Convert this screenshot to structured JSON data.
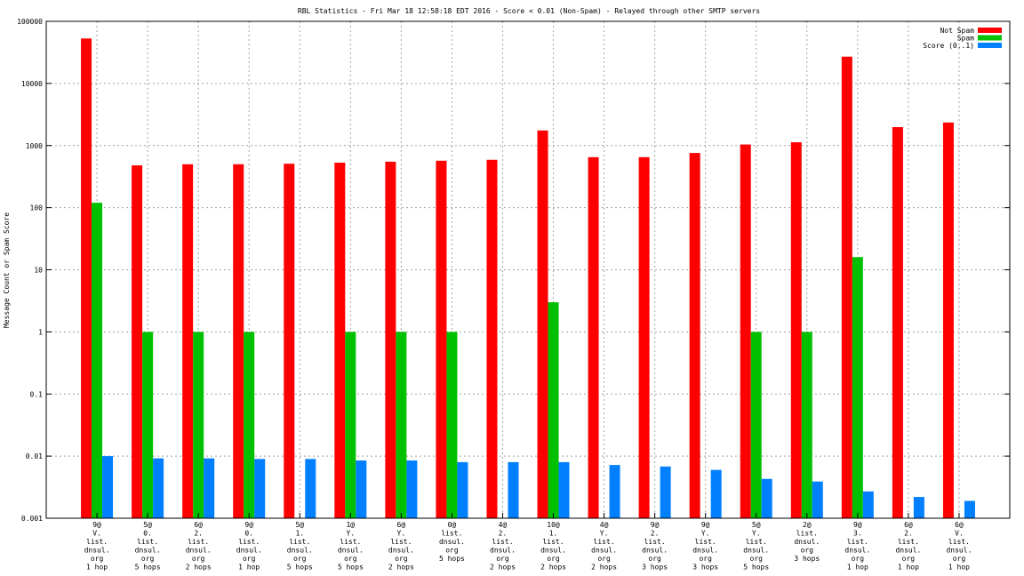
{
  "chart_data": {
    "type": "bar",
    "title": "RBL Statistics - Fri Mar 18 12:58:18 EDT 2016 - Score < 0.01 (Non-Spam) - Relayed through other SMTP servers",
    "xlabel": "",
    "ylabel": "Message Count or Spam Score",
    "yscale": "log",
    "ylim": [
      0.001,
      100000
    ],
    "yticks": [
      "0.001",
      "0.01",
      "0.1",
      "1",
      "10",
      "100",
      "1000",
      "10000",
      "100000"
    ],
    "grid": true,
    "legend_position": "top-right",
    "categories": [
      [
        "9@",
        "V.",
        "list.",
        "dnsul.",
        "org",
        "1 hop"
      ],
      [
        "5@",
        "0.",
        "list.",
        "dnsul.",
        "org",
        "5 hops"
      ],
      [
        "6@",
        "2.",
        "list.",
        "dnsul.",
        "org",
        "2 hops"
      ],
      [
        "9@",
        "0.",
        "list.",
        "dnsul.",
        "org",
        "1 hop"
      ],
      [
        "5@",
        "1.",
        "list.",
        "dnsul.",
        "org",
        "5 hops"
      ],
      [
        "1@",
        "Y.",
        "list.",
        "dnsul.",
        "org",
        "5 hops"
      ],
      [
        "6@",
        "Y.",
        "list.",
        "dnsul.",
        "org",
        "2 hops"
      ],
      [
        "0@",
        "list.",
        "dnsul.",
        "org",
        "5 hops"
      ],
      [
        "4@",
        "2.",
        "list.",
        "dnsul.",
        "org",
        "2 hops"
      ],
      [
        "10@",
        "1.",
        "list.",
        "dnsul.",
        "org",
        "2 hops"
      ],
      [
        "4@",
        "Y.",
        "list.",
        "dnsul.",
        "org",
        "2 hops"
      ],
      [
        "9@",
        "2.",
        "list.",
        "dnsul.",
        "org",
        "3 hops"
      ],
      [
        "9@",
        "Y.",
        "list.",
        "dnsul.",
        "org",
        "3 hops"
      ],
      [
        "5@",
        "Y.",
        "list.",
        "dnsul.",
        "org",
        "5 hops"
      ],
      [
        "2@",
        "list.",
        "dnsul.",
        "org",
        "3 hops"
      ],
      [
        "9@",
        "3.",
        "list.",
        "dnsul.",
        "org",
        "1 hop"
      ],
      [
        "6@",
        "2.",
        "list.",
        "dnsul.",
        "org",
        "1 hop"
      ],
      [
        "6@",
        "V.",
        "list.",
        "dnsul.",
        "org",
        "1 hop"
      ]
    ],
    "series": [
      {
        "name": "Not Spam",
        "color": "#ff0000",
        "values": [
          53000,
          480,
          500,
          500,
          510,
          530,
          550,
          570,
          590,
          1750,
          650,
          650,
          760,
          1040,
          1130,
          27000,
          1980,
          2350
        ]
      },
      {
        "name": "Spam",
        "color": "#00c000",
        "values": [
          120,
          1,
          1,
          1,
          null,
          1,
          1,
          1,
          null,
          3,
          null,
          null,
          null,
          1,
          1,
          16,
          null,
          null
        ]
      },
      {
        "name": "Score (0..1)",
        "color": "#0080ff",
        "values": [
          0.01,
          0.0092,
          0.0092,
          0.009,
          0.009,
          0.0085,
          0.0085,
          0.008,
          0.008,
          0.008,
          0.0072,
          0.0068,
          0.006,
          0.0043,
          0.0039,
          0.0027,
          0.0022,
          0.0019
        ]
      }
    ]
  }
}
